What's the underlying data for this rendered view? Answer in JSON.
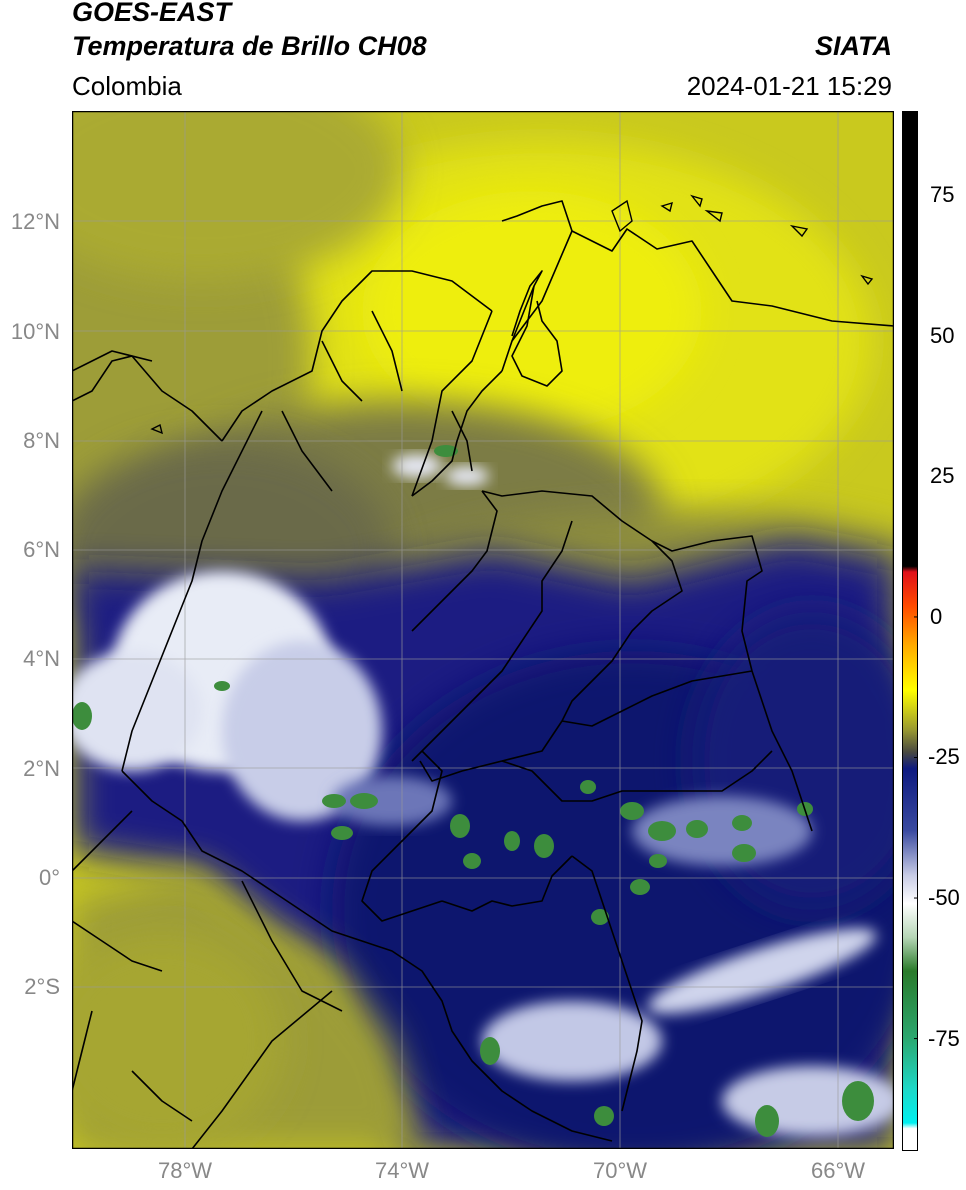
{
  "header": {
    "title": "GOES-EAST",
    "subtitle": "Temperatura de Brillo CH08",
    "region": "Colombia",
    "source": "SIATA",
    "datetime": "2024-01-21 15:29"
  },
  "map": {
    "lat_ticks": [
      "12°N",
      "10°N",
      "8°N",
      "6°N",
      "4°N",
      "2°N",
      "0°",
      "2°S"
    ],
    "lon_ticks": [
      "78°W",
      "74°W",
      "70°W",
      "66°W"
    ],
    "lat_range": [
      -4.9,
      14.0
    ],
    "lon_range": [
      -80.0,
      -65.0
    ],
    "grid": true,
    "colors": {
      "warm_yellow": "#dede14",
      "olive": "#a8a830",
      "gray_olive": "#777745",
      "deep_blue": "#1a1f80",
      "navy": "#10186e",
      "white_cloud": "#f2f4fa",
      "green_cold": "#3c8c3c",
      "border": "#000000"
    }
  },
  "colorbar": {
    "label_values": [
      "75",
      "50",
      "25",
      "0",
      "-25",
      "-50",
      "-75"
    ],
    "range": [
      -95,
      90
    ],
    "stops": [
      {
        "value": 90,
        "color": "#000000"
      },
      {
        "value": 9,
        "color": "#000000"
      },
      {
        "value": 8,
        "color": "#e0101a"
      },
      {
        "value": 2,
        "color": "#ff4a00"
      },
      {
        "value": -5,
        "color": "#ffaa00"
      },
      {
        "value": -13,
        "color": "#ffff00"
      },
      {
        "value": -20,
        "color": "#9a9a30"
      },
      {
        "value": -24,
        "color": "#4a4a40"
      },
      {
        "value": -27,
        "color": "#0e1a80"
      },
      {
        "value": -38,
        "color": "#3a4aa0"
      },
      {
        "value": -46,
        "color": "#c8cce6"
      },
      {
        "value": -51,
        "color": "#ffffff"
      },
      {
        "value": -57,
        "color": "#b6d6b6"
      },
      {
        "value": -63,
        "color": "#2a7a2a"
      },
      {
        "value": -75,
        "color": "#2ba870"
      },
      {
        "value": -84,
        "color": "#1ed8c8"
      },
      {
        "value": -90,
        "color": "#00f0f0"
      },
      {
        "value": -91,
        "color": "#ffffff"
      },
      {
        "value": -95,
        "color": "#ffffff"
      }
    ]
  }
}
